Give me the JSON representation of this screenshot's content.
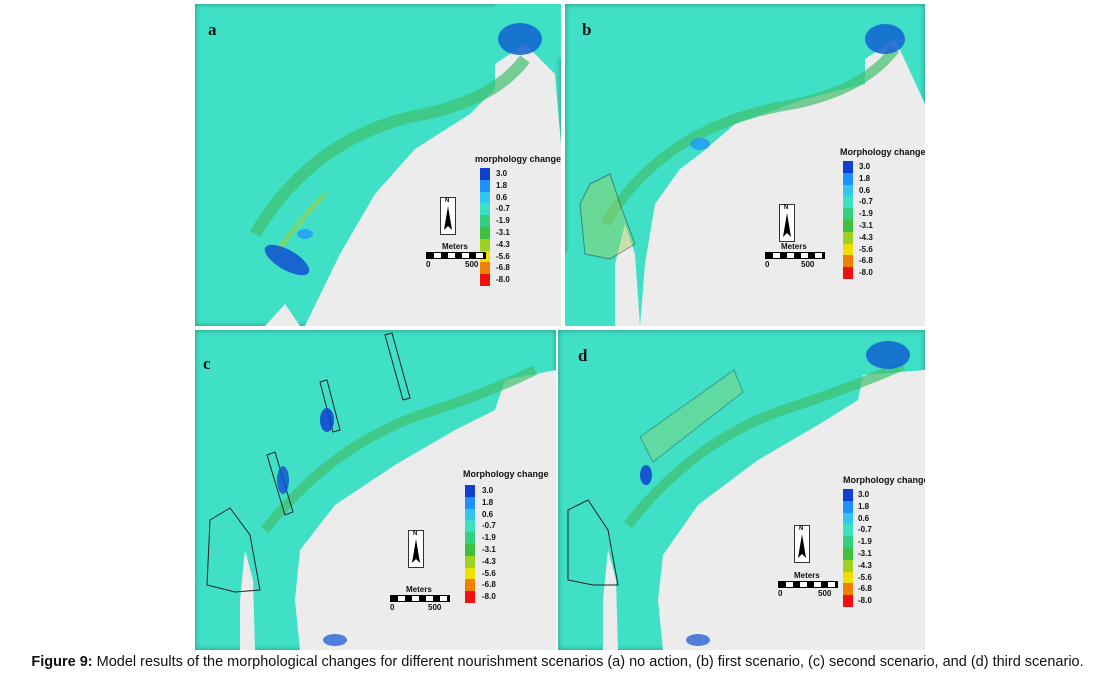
{
  "panels": [
    {
      "id": "a",
      "label": "a",
      "legend_title": "morphology change"
    },
    {
      "id": "b",
      "label": "b",
      "legend_title": "Morphology change"
    },
    {
      "id": "c",
      "label": "c",
      "legend_title": "Morphology change"
    },
    {
      "id": "d",
      "label": "d",
      "legend_title": "Morphology change"
    }
  ],
  "legend": {
    "ticks": [
      "3.0",
      "1.8",
      "0.6",
      "-0.7",
      "-1.9",
      "-3.1",
      "-4.3",
      "-5.6",
      "-6.8",
      "-8.0"
    ],
    "colors": [
      "#1040d0",
      "#1e90ff",
      "#35c6f0",
      "#3ee0c2",
      "#30d080",
      "#40c040",
      "#a0d020",
      "#f0e000",
      "#f08000",
      "#f01010"
    ]
  },
  "scale_bar": {
    "unit": "Meters",
    "start": "0",
    "end": "500"
  },
  "north_label": "N",
  "caption": {
    "label": "Figure 9:",
    "text": " Model results of the morphological changes for different nourishment scenarios (a) no action, (b) first scenario, (c) second scenario, and (d) third scenario."
  }
}
